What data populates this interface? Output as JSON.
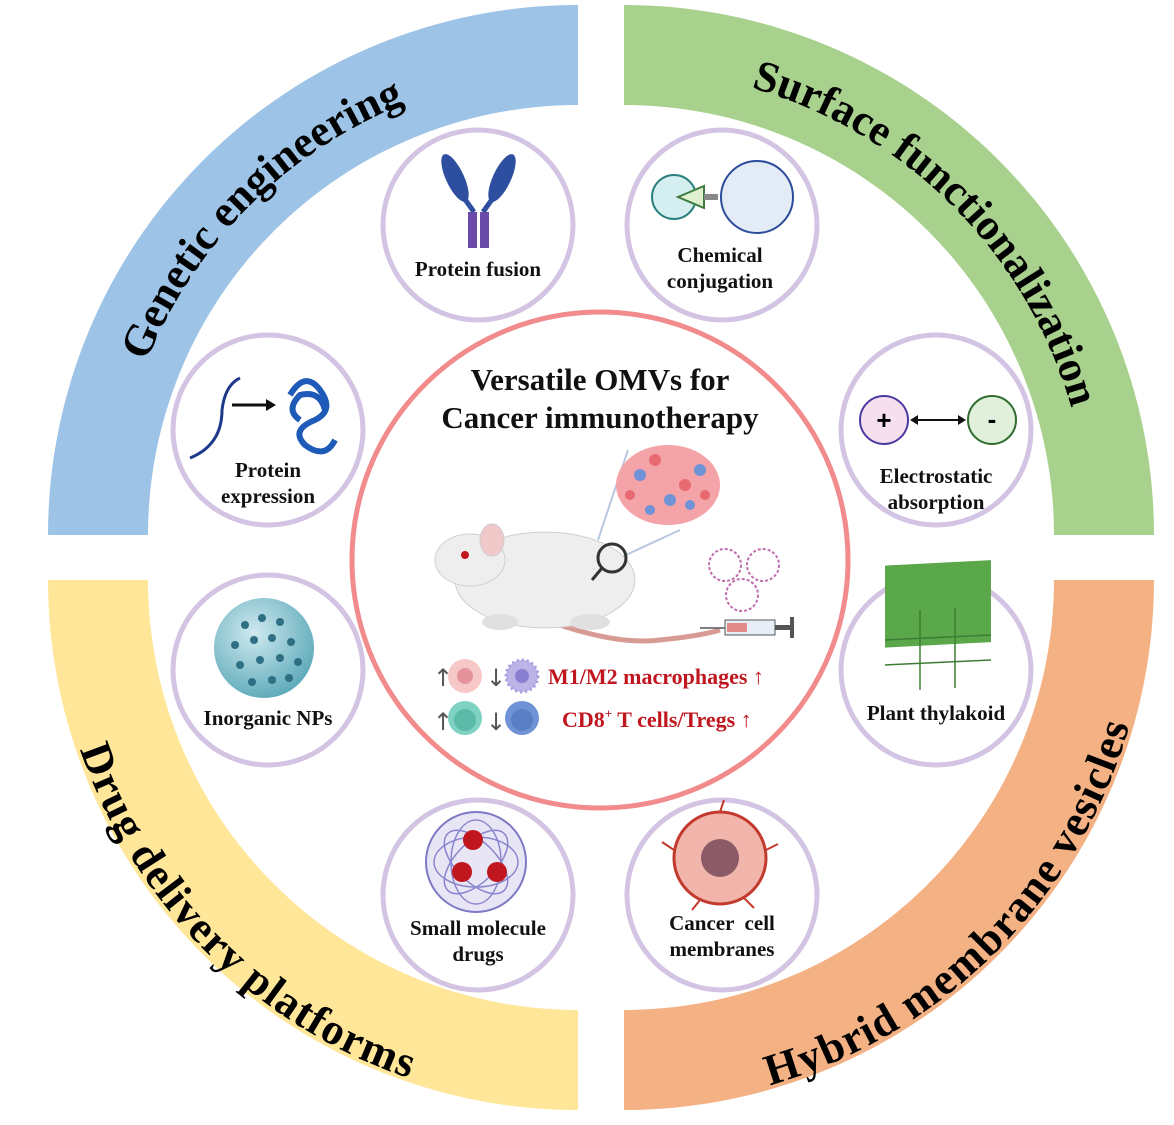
{
  "center": {
    "title_line1": "Versatile OMVs for",
    "title_line2": "Cancer immunotherapy",
    "effect1": "M1/M2 macrophages ↑",
    "effect2_main": "CD8",
    "effect2_sup": "+",
    "effect2_rest": " T cells/Tregs ↑"
  },
  "quadrants": [
    {
      "label": "Genetic engineering",
      "color": "#9dc3e6"
    },
    {
      "label": "Surface functionalization",
      "color": "#a9d18e"
    },
    {
      "label": "Drug delivery platforms",
      "color": "#ffe699"
    },
    {
      "label": "Hybrid membrane vesicles",
      "color": "#f4b183"
    }
  ],
  "nodes": {
    "protein_fusion": [
      "Protein fusion"
    ],
    "chemical_conjugation": [
      "Chemical",
      "conjugation"
    ],
    "protein_expression": [
      "Protein",
      "expression"
    ],
    "electrostatic_absorption": [
      "Electrostatic",
      "absorption"
    ],
    "inorganic_nps": [
      "Inorganic NPs"
    ],
    "plant_thylakoid": [
      "Plant thylakoid"
    ],
    "small_molecule_drugs": [
      "Small molecule",
      "drugs"
    ],
    "cancer_cell_membranes": [
      "Cancer  cell",
      "membranes"
    ]
  },
  "symbols": {
    "plus": "+",
    "minus": "-"
  },
  "colors": {
    "node_ring": "#d3c4e3",
    "center_ring": "#f28b8b",
    "effect_text": "#c0171f"
  }
}
